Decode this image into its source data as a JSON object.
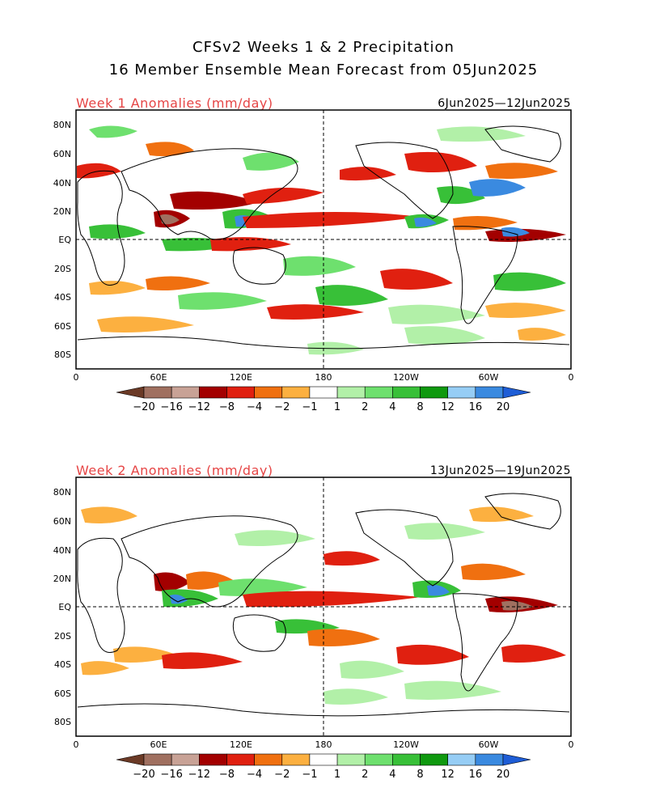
{
  "figure": {
    "title_line1": "CFSv2 Weeks 1 & 2 Precipitation",
    "title_line2": "16 Member Ensemble Mean Forecast from 05Jun2025"
  },
  "panels": [
    {
      "label": "Week 1 Anomalies (mm/day)",
      "date_range": "6Jun2025—12Jun2025"
    },
    {
      "label": "Week 2 Anomalies (mm/day)",
      "date_range": "13Jun2025—19Jun2025"
    }
  ],
  "map_axes": {
    "lat_labels": [
      "80N",
      "60N",
      "40N",
      "20N",
      "EQ",
      "20S",
      "40S",
      "60S",
      "80S"
    ],
    "lon_labels": [
      "0",
      "60E",
      "120E",
      "180",
      "120W",
      "60W",
      "0"
    ],
    "lat_range": [
      -90,
      90
    ],
    "lon_range": [
      0,
      360
    ],
    "reference_lines": [
      "equator",
      "dateline"
    ]
  },
  "colorbar": {
    "labels": [
      "−20",
      "−16",
      "−12",
      "−8",
      "−4",
      "−2",
      "−1",
      "1",
      "2",
      "4",
      "8",
      "12",
      "16",
      "20"
    ],
    "colors": [
      "#6b3a26",
      "#a07060",
      "#c8a296",
      "#a30000",
      "#e02010",
      "#f07010",
      "#fcb040",
      "#ffffff",
      "#b2f0a8",
      "#6ee06e",
      "#38c038",
      "#0f990f",
      "#96cdf5",
      "#3a8ae0",
      "#1e5dd6"
    ]
  }
}
